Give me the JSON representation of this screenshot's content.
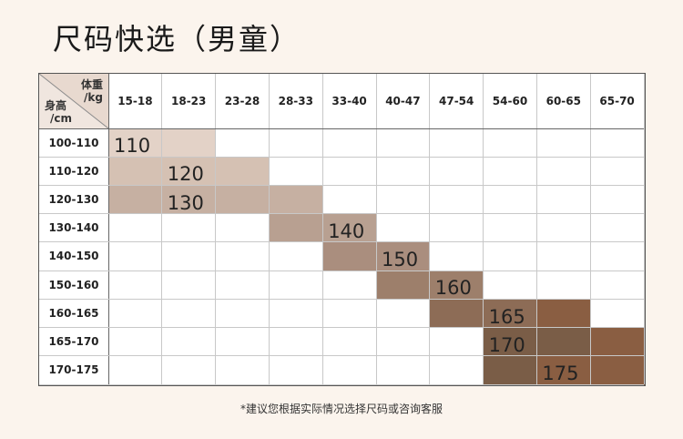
{
  "title": "尺码快选（男童）",
  "corner": {
    "weight_label": "体重",
    "weight_unit": "/kg",
    "height_label": "身高",
    "height_unit": "/cm"
  },
  "weight_ranges": [
    "15-18",
    "18-23",
    "23-28",
    "28-33",
    "33-40",
    "40-47",
    "47-54",
    "54-60",
    "60-65",
    "65-70"
  ],
  "height_ranges": [
    "100-110",
    "110-120",
    "120-130",
    "130-140",
    "140-150",
    "150-160",
    "160-165",
    "165-170",
    "170-175"
  ],
  "sizes": [
    {
      "label": "110",
      "color": "#e3d2c7",
      "cells": [
        [
          0,
          0
        ],
        [
          1,
          0
        ]
      ]
    },
    {
      "label": "120",
      "color": "#d5c1b3",
      "cells": [
        [
          0,
          1
        ],
        [
          1,
          1
        ],
        [
          2,
          1
        ]
      ]
    },
    {
      "label": "130",
      "color": "#c6b0a2",
      "cells": [
        [
          0,
          2
        ],
        [
          1,
          2
        ],
        [
          2,
          2
        ],
        [
          3,
          2
        ]
      ]
    },
    {
      "label": "140",
      "color": "#b8a091",
      "cells": [
        [
          3,
          3
        ],
        [
          4,
          3
        ]
      ]
    },
    {
      "label": "150",
      "color": "#aa8e7e",
      "cells": [
        [
          4,
          4
        ],
        [
          5,
          4
        ]
      ]
    },
    {
      "label": "160",
      "color": "#9d7f6b",
      "cells": [
        [
          5,
          5
        ],
        [
          6,
          5
        ]
      ]
    },
    {
      "label": "165",
      "color": "#8d6c56",
      "cells": [
        [
          6,
          6
        ],
        [
          7,
          6
        ]
      ]
    },
    {
      "label": "170",
      "color": "#7a5d47",
      "cells": [
        [
          7,
          7
        ],
        [
          8,
          7
        ],
        [
          7,
          8
        ]
      ]
    },
    {
      "label": "175",
      "color": "#8a5e42",
      "cells": [
        [
          8,
          6
        ],
        [
          9,
          7
        ],
        [
          8,
          8
        ],
        [
          9,
          8
        ]
      ]
    }
  ],
  "footnote": "*建议您根据实际情况选择尺码或咨询客服"
}
